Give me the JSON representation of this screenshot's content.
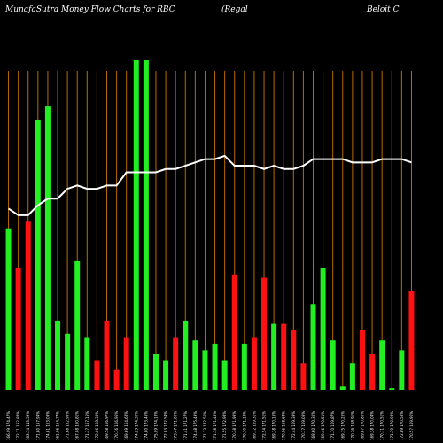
{
  "header": {
    "title": "MunafaSutra  Money Flow  Charts for RBC",
    "mid": "(Regal",
    "right": "Beloit C"
  },
  "chart_data": {
    "type": "bar",
    "title": "MunafaSutra  Money Flow  Charts for RBC",
    "ylim": [
      0,
      100
    ],
    "grid": true,
    "colors": {
      "up": "#22ee22",
      "down": "#ff1111",
      "grid": "#b86b00",
      "line": "#ffffff",
      "bg": "#000000"
    },
    "categories": [
      "166.99 174.47%",
      "172.71 152.88%",
      "163.74 143.59%",
      "171.80 157.94%",
      "174.81 163.09%",
      "161.06 154.77%",
      "171.68 162.95%",
      "167.08 160.81%",
      "171.37 167.15%",
      "172.06 168.33%",
      "169.58 166.97%",
      "170.16 166.95%",
      "169.69 164.68%",
      "174.23 174.30%",
      "174.80 173.45%",
      "175.09 174.13%",
      "172.83 172.54%",
      "173.47 171.00%",
      "171.41 171.27%",
      "174.48 175.49%",
      "171.73 172.56%",
      "171.18 171.43%",
      "171.55 172.98%",
      "170.38 171.93%",
      "170.10 171.13%",
      "169.72 169.31%",
      "172.54 171.51%",
      "169.18 170.15%",
      "170.06 168.68%",
      "172.44 169.39%",
      "170.17 169.03%",
      "169.60 170.30%",
      "169.46 170.51%",
      "171.10 169.87%",
      "169.75 170.26%",
      "170.26 168.91%",
      "169.87 170.80%",
      "169.38 170.04%",
      "170.71 170.51%",
      "171.19 170.98%",
      "172.89 170.53%",
      "170.57 169.96%"
    ],
    "values": [
      49,
      37,
      51,
      82,
      86,
      21,
      17,
      39,
      16,
      9,
      21,
      6,
      16,
      100,
      100,
      11,
      9,
      16,
      21,
      15,
      12,
      14,
      9,
      35,
      14,
      16,
      34,
      20,
      20,
      18,
      8,
      26,
      37,
      15,
      1,
      8,
      18,
      11,
      15,
      0.5,
      12,
      30
    ],
    "directions": [
      "up",
      "down",
      "down",
      "up",
      "up",
      "up",
      "up",
      "up",
      "up",
      "down",
      "down",
      "down",
      "down",
      "up",
      "up",
      "up",
      "up",
      "down",
      "up",
      "up",
      "up",
      "up",
      "up",
      "down",
      "up",
      "down",
      "down",
      "up",
      "down",
      "down",
      "down",
      "up",
      "up",
      "up",
      "up",
      "up",
      "down",
      "down",
      "up",
      "up",
      "up",
      "down"
    ],
    "line": [
      55,
      53,
      53,
      56,
      58,
      58,
      61,
      62,
      61,
      61,
      62,
      62,
      66,
      66,
      66,
      66,
      67,
      67,
      68,
      69,
      70,
      70,
      71,
      68,
      68,
      68,
      67,
      68,
      67,
      67,
      68,
      70,
      70,
      70,
      70,
      69,
      69,
      69,
      70,
      70,
      70,
      69
    ]
  }
}
